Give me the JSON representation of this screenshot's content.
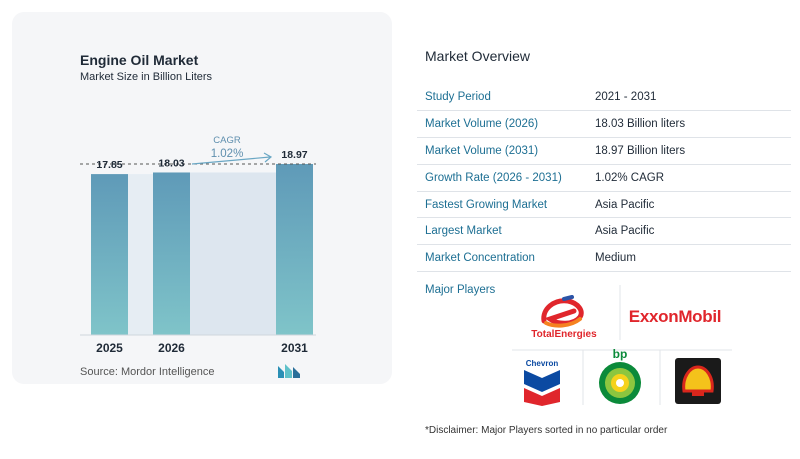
{
  "chart_data": {
    "type": "bar",
    "title": "Engine Oil Market",
    "subtitle": "Market Size in Billion Liters",
    "categories": [
      "2025",
      "2026",
      "2031"
    ],
    "values": [
      17.85,
      18.03,
      18.97
    ],
    "value_labels": [
      "17.85",
      "18.03",
      "18.97"
    ],
    "annotation": {
      "label": "CAGR",
      "value": "1.02%"
    },
    "bar_color": "#5f9ab8",
    "bar_color_bottom": "#7fc4c9",
    "source": "Source:  Mordor Intelligence"
  },
  "overview": {
    "title": "Market Overview",
    "rows": [
      {
        "key": "Study Period",
        "value": "2021 - 2031"
      },
      {
        "key": "Market Volume (2026)",
        "value": "18.03 Billion liters"
      },
      {
        "key": "Market Volume (2031)",
        "value": "18.97 Billion liters"
      },
      {
        "key": "Growth Rate (2026 - 2031)",
        "value": "1.02% CAGR"
      },
      {
        "key": "Fastest Growing Market",
        "value": "Asia Pacific"
      },
      {
        "key": "Largest Market",
        "value": "Asia Pacific"
      },
      {
        "key": "Market Concentration",
        "value": "Medium"
      }
    ],
    "players_label": "Major Players",
    "players": {
      "total": "TotalEnergies",
      "exxon": "ExxonMobil",
      "chevron": "Chevron",
      "bp": "bp"
    },
    "disclaimer": "*Disclaimer: Major Players sorted in no particular order"
  }
}
